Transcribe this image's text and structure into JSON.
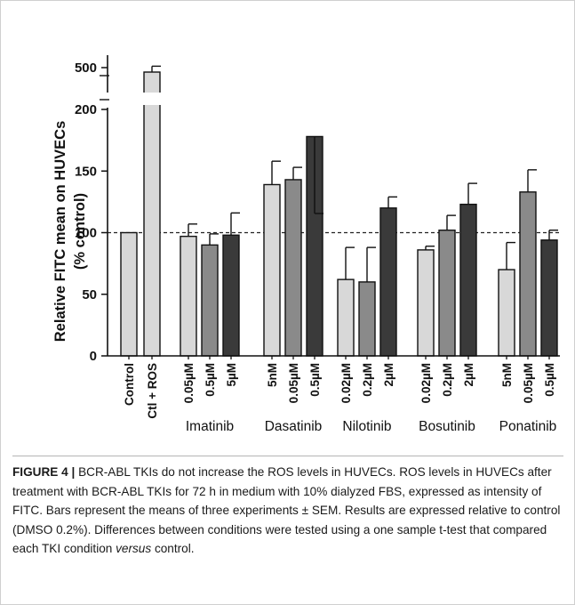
{
  "chart_data": {
    "type": "bar",
    "ylabel": "Relative FITC mean on HUVECs (% control)",
    "y_ticks": [
      0,
      50,
      100,
      150,
      200,
      500
    ],
    "y_axis_break": [
      200,
      470
    ],
    "reference_line": 100,
    "bars": [
      {
        "tick": "Control",
        "group": "",
        "value": 100,
        "error": 0,
        "shade": "#d8d8d8"
      },
      {
        "tick": "Ctl + ROS",
        "group": "",
        "value": 490,
        "error": 12,
        "shade": "#d8d8d8"
      },
      {
        "tick": "0.05µM",
        "group": "Imatinib",
        "value": 97,
        "error": 10,
        "shade": "#d8d8d8"
      },
      {
        "tick": "0.5µM",
        "group": "Imatinib",
        "value": 90,
        "error": 9,
        "shade": "#8a8a8a"
      },
      {
        "tick": "5µM",
        "group": "Imatinib",
        "value": 98,
        "error": 18,
        "shade": "#3a3a3a"
      },
      {
        "tick": "5nM",
        "group": "Dasatinib",
        "value": 139,
        "error": 19,
        "shade": "#d8d8d8"
      },
      {
        "tick": "0.05µM",
        "group": "Dasatinib",
        "value": 143,
        "error": 10,
        "shade": "#8a8a8a"
      },
      {
        "tick": "0.5µM",
        "group": "Dasatinib",
        "value": 178,
        "error": 23,
        "shade": "#3a3a3a"
      },
      {
        "tick": "0.02µM",
        "group": "Nilotinib",
        "value": 62,
        "error": 26,
        "shade": "#d8d8d8"
      },
      {
        "tick": "0.2µM",
        "group": "Nilotinib",
        "value": 60,
        "error": 28,
        "shade": "#8a8a8a"
      },
      {
        "tick": "2µM",
        "group": "Nilotinib",
        "value": 120,
        "error": 9,
        "shade": "#3a3a3a"
      },
      {
        "tick": "0.02µM",
        "group": "Bosutinib",
        "value": 86,
        "error": 3,
        "shade": "#d8d8d8"
      },
      {
        "tick": "0.2µM",
        "group": "Bosutinib",
        "value": 102,
        "error": 12,
        "shade": "#8a8a8a"
      },
      {
        "tick": "2µM",
        "group": "Bosutinib",
        "value": 123,
        "error": 17,
        "shade": "#3a3a3a"
      },
      {
        "tick": "5nM",
        "group": "Ponatinib",
        "value": 70,
        "error": 22,
        "shade": "#d8d8d8"
      },
      {
        "tick": "0.05µM",
        "group": "Ponatinib",
        "value": 133,
        "error": 18,
        "shade": "#8a8a8a"
      },
      {
        "tick": "0.5µM",
        "group": "Ponatinib",
        "value": 94,
        "error": 8,
        "shade": "#3a3a3a"
      }
    ],
    "groups": [
      "Imatinib",
      "Dasatinib",
      "Nilotinib",
      "Bosutinib",
      "Ponatinib"
    ]
  },
  "caption": {
    "label": "FIGURE 4 |",
    "text_before_italic": "BCR-ABL TKIs do not increase the ROS levels in HUVECs. ROS levels in HUVECs after treatment with BCR-ABL TKIs for 72 h in medium with 10% dialyzed FBS, expressed as intensity of FITC. Bars represent the means of three experiments ± SEM. Results are expressed relative to control (DMSO 0.2%). Differences between conditions were tested using a one sample t-test that compared each TKI condition ",
    "italic": "versus",
    "text_after_italic": " control."
  }
}
